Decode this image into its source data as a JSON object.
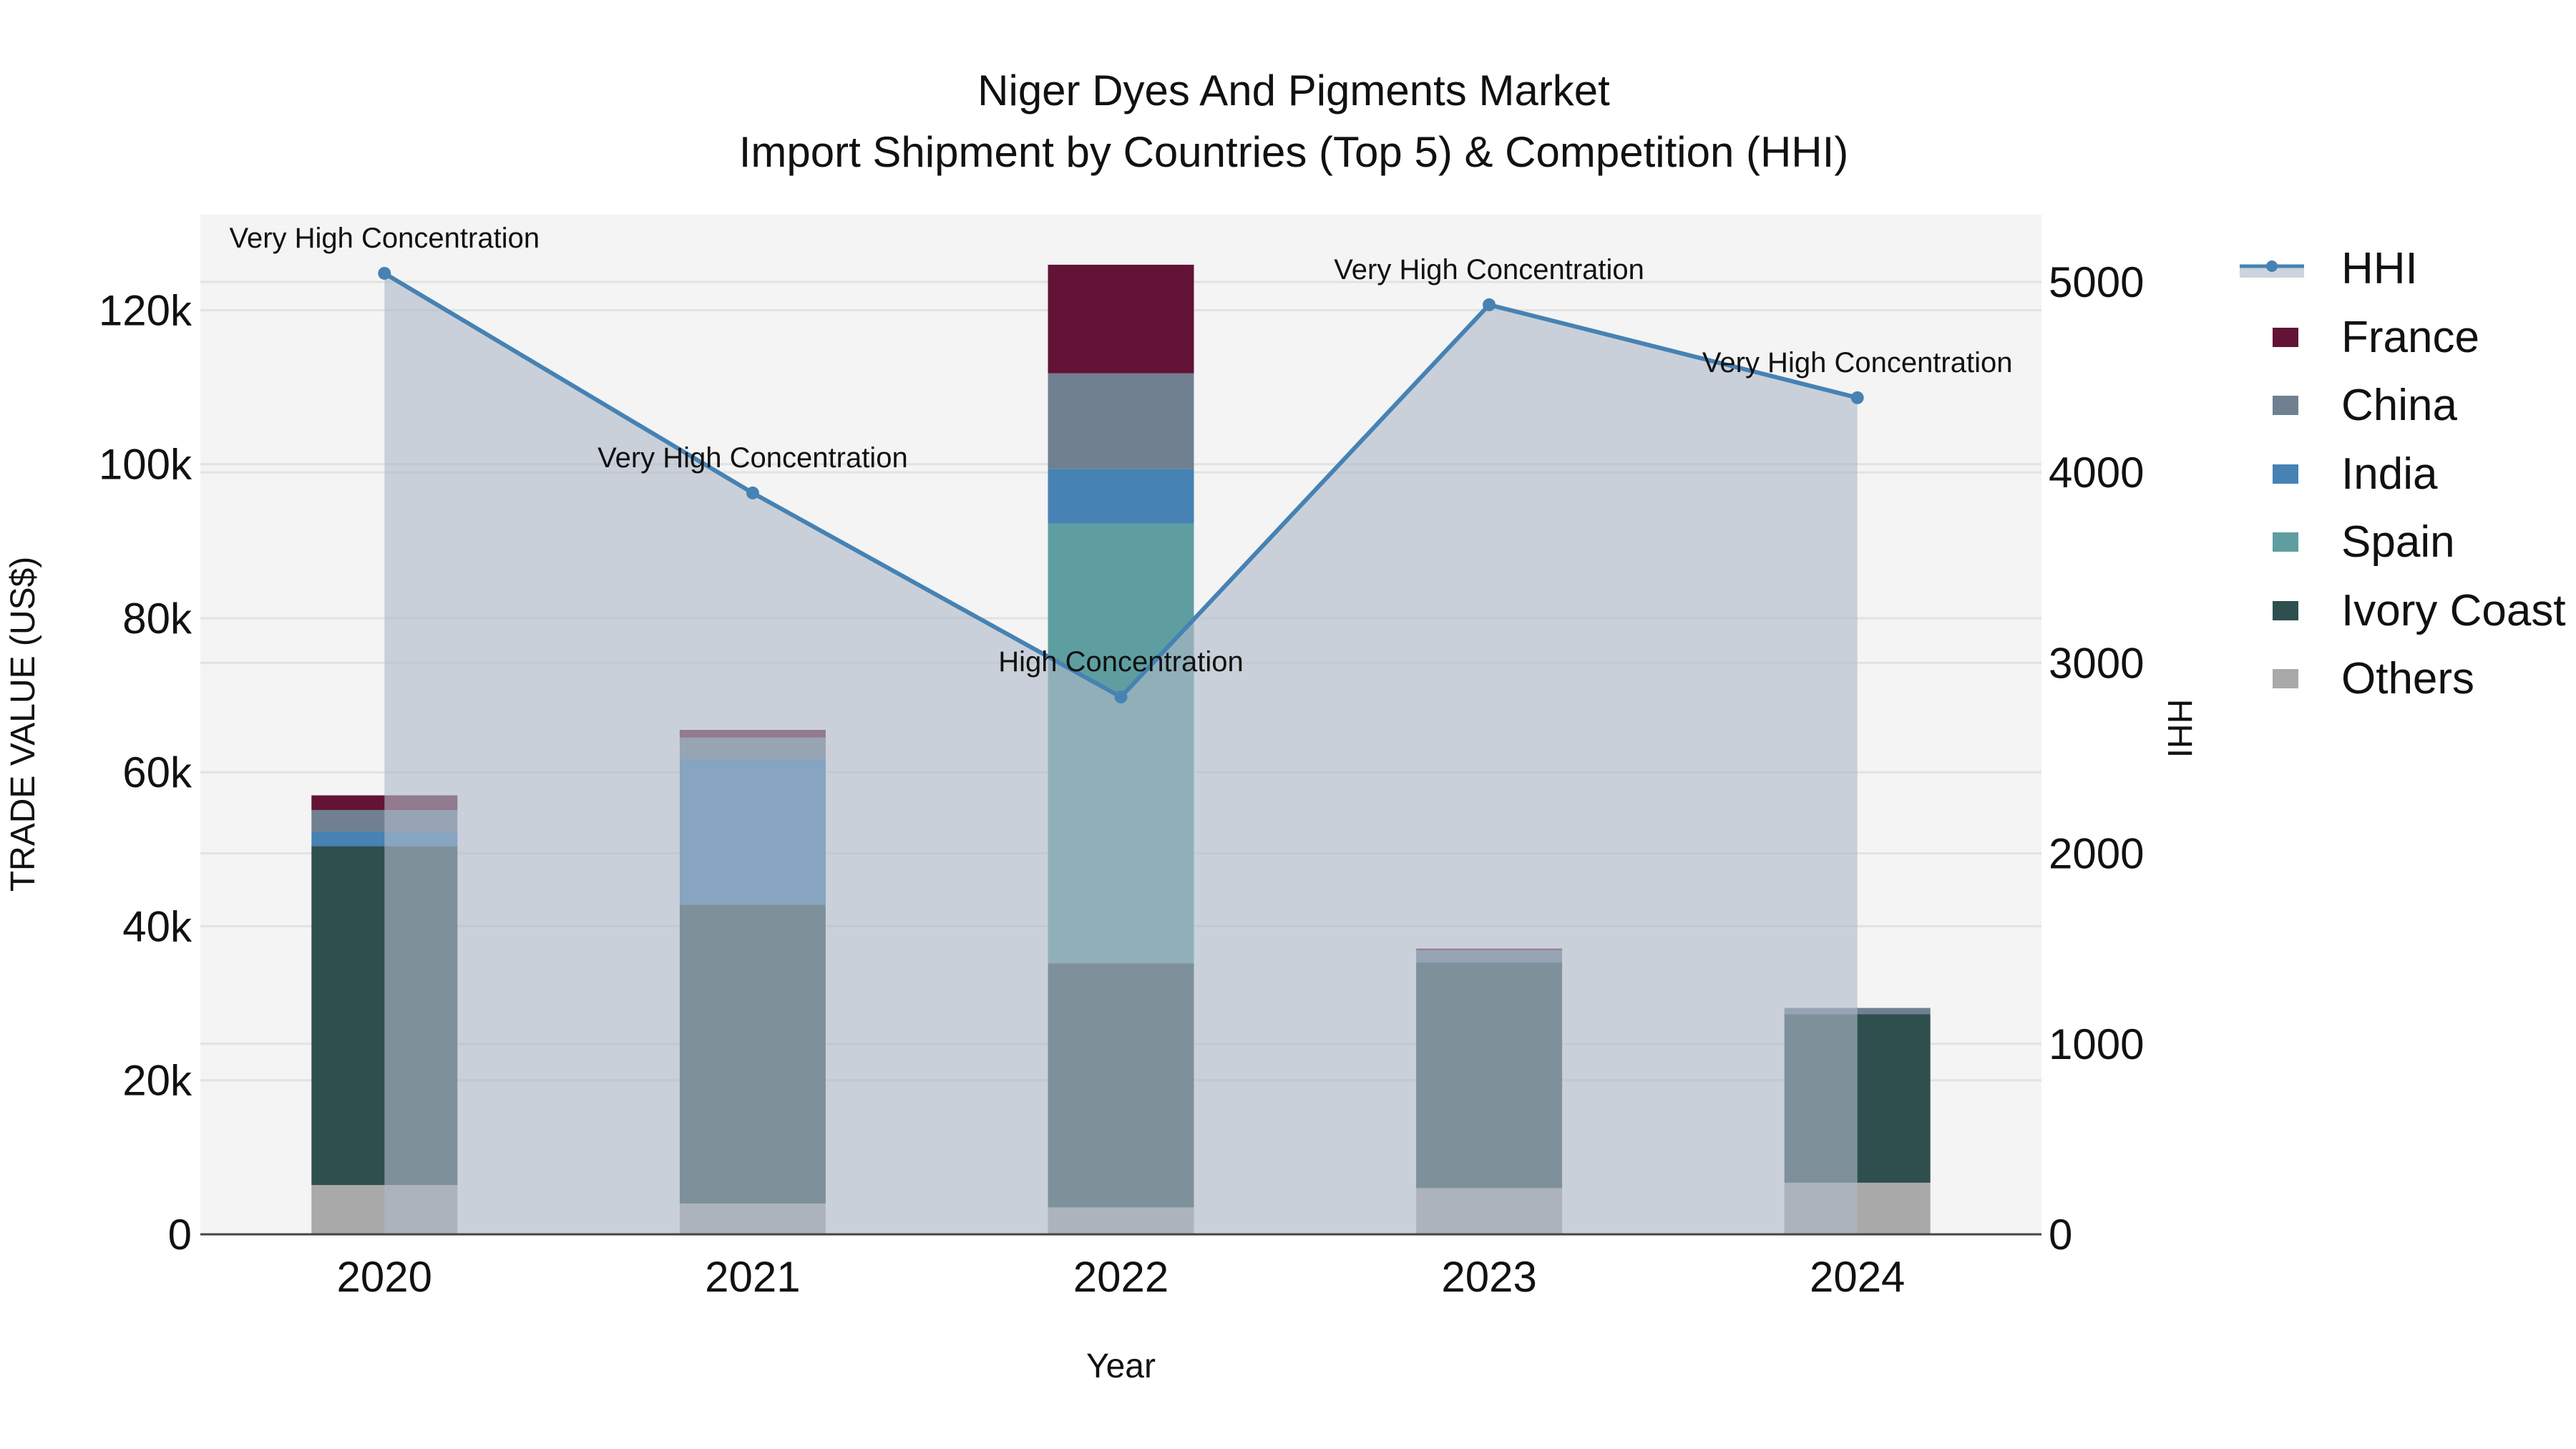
{
  "title": {
    "line1": "Niger Dyes And Pigments Market",
    "line2": "Import Shipment by Countries (Top 5) & Competition (HHI)"
  },
  "colors": {
    "France": "#631336",
    "China": "#708090",
    "India": "#4682b4",
    "Spain": "#5f9ea0",
    "Ivory Coast": "#2f4f4f",
    "Others": "#a9a9a9",
    "HHI_line": "#4682b4",
    "HHI_fill": "rgba(176,185,200,0.62)",
    "plot_bg": "#f4f4f4",
    "grid": "#e2e2e2"
  },
  "legend": {
    "items": [
      {
        "label": "HHI",
        "type": "line"
      },
      {
        "label": "France",
        "type": "bar"
      },
      {
        "label": "China",
        "type": "bar"
      },
      {
        "label": "India",
        "type": "bar"
      },
      {
        "label": "Spain",
        "type": "bar"
      },
      {
        "label": "Ivory Coast",
        "type": "bar"
      },
      {
        "label": "Others",
        "type": "bar"
      }
    ]
  },
  "chart_data": {
    "type": "bar",
    "subtype": "stacked bar with secondary-axis line/area",
    "title": "Niger Dyes And Pigments Market<br>Import Shipment by Countries (Top 5) & Competition (HHI)",
    "xlabel": "Year",
    "ylabel": "TRADE VALUE (US$)",
    "y2label": "HHI",
    "categories": [
      "2020",
      "2021",
      "2022",
      "2023",
      "2024"
    ],
    "stack_order_bottom_to_top": [
      "Others",
      "Ivory Coast",
      "Spain",
      "India",
      "China",
      "France"
    ],
    "series": [
      {
        "name": "Others",
        "axis": "y",
        "values": [
          6400,
          4000,
          3500,
          6000,
          6700
        ]
      },
      {
        "name": "Ivory Coast",
        "axis": "y",
        "values": [
          44000,
          38800,
          31700,
          29300,
          21900
        ]
      },
      {
        "name": "Spain",
        "axis": "y",
        "values": [
          0,
          0,
          57100,
          0,
          0
        ]
      },
      {
        "name": "India",
        "axis": "y",
        "values": [
          1900,
          18900,
          7100,
          100,
          0
        ]
      },
      {
        "name": "China",
        "axis": "y",
        "values": [
          2800,
          2800,
          12400,
          1500,
          800
        ]
      },
      {
        "name": "France",
        "axis": "y",
        "values": [
          1900,
          1000,
          14100,
          200,
          0
        ]
      },
      {
        "name": "HHI",
        "axis": "y2",
        "type": "line+area",
        "values": [
          5045,
          3892,
          2821,
          4880,
          4392
        ]
      }
    ],
    "annotations": [
      {
        "x": "2020",
        "text": "Very High Concentration"
      },
      {
        "x": "2021",
        "text": "Very High Concentration"
      },
      {
        "x": "2022",
        "text": "High Concentration"
      },
      {
        "x": "2023",
        "text": "Very High Concentration"
      },
      {
        "x": "2024",
        "text": "Very High Concentration"
      }
    ],
    "yticks": [
      0,
      20000,
      40000,
      60000,
      80000,
      100000,
      120000
    ],
    "ytick_labels": [
      "0",
      "20k",
      "40k",
      "60k",
      "80k",
      "100k",
      "120k"
    ],
    "y2ticks": [
      0,
      1000,
      2000,
      3000,
      4000,
      5000
    ],
    "y2tick_labels": [
      "0",
      "1000",
      "2000",
      "3000",
      "4000",
      "5000"
    ],
    "ylim": [
      0,
      132400
    ],
    "y2lim": [
      0,
      5353
    ],
    "grid": true,
    "legend_position": "right"
  }
}
